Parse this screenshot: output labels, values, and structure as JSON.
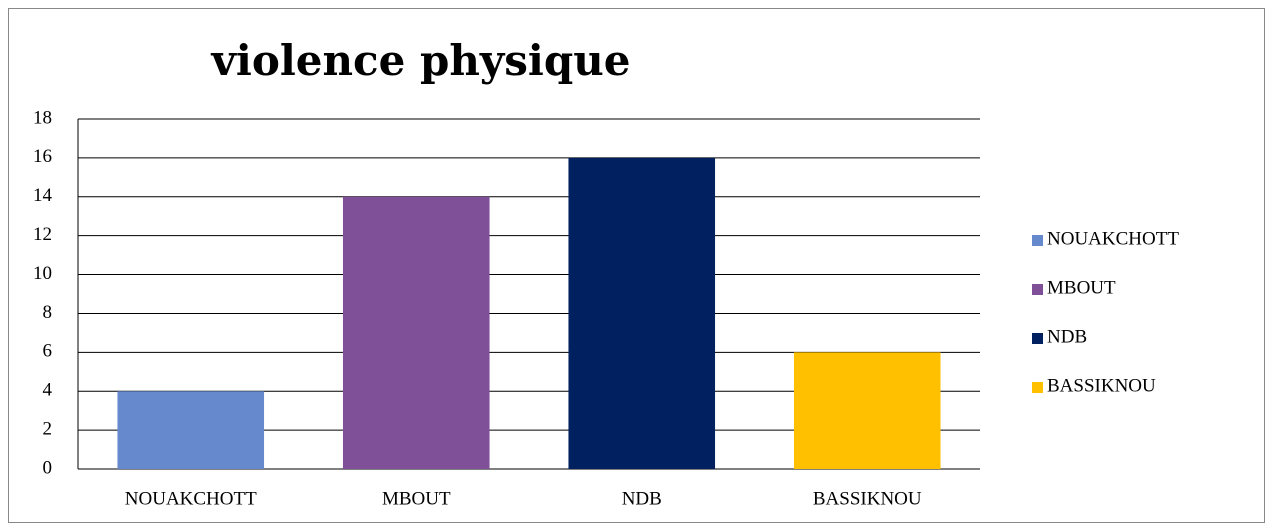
{
  "chart_data": {
    "type": "bar",
    "title": "violence physique",
    "categories": [
      "NOUAKCHOTT",
      "MBOUT",
      "NDB",
      "BASSIKNOU"
    ],
    "values": [
      4,
      14,
      16,
      6
    ],
    "colors": [
      "#6688cc",
      "#7f4f98",
      "#002060",
      "#ffc000"
    ],
    "ylim": [
      0,
      18
    ],
    "yticks": [
      0,
      2,
      4,
      6,
      8,
      10,
      12,
      14,
      16,
      18
    ],
    "grid": true,
    "legend": "right"
  }
}
